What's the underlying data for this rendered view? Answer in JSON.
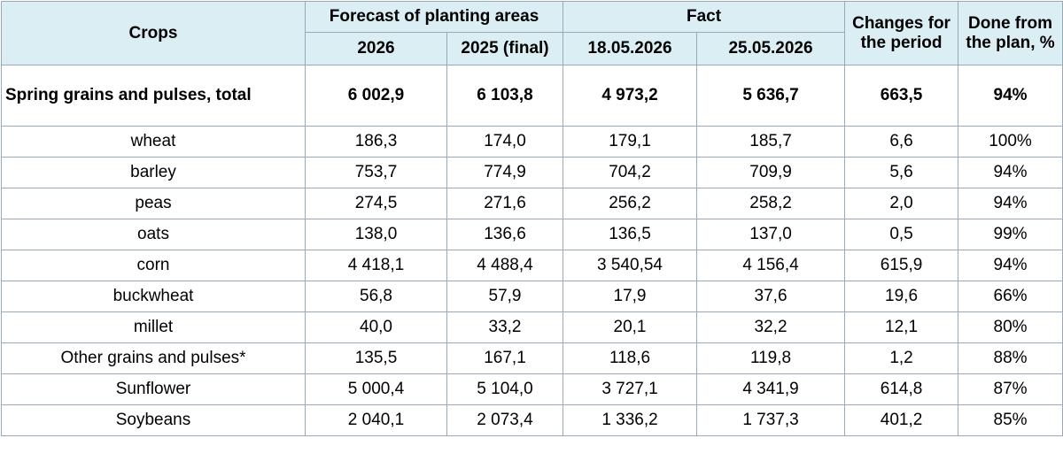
{
  "header": {
    "crops": "Crops",
    "forecast": "Forecast of planting areas",
    "forecast_2026": "2026",
    "forecast_2025": "2025 (final)",
    "fact": "Fact",
    "fact_date1": "18.05.2026",
    "fact_date2": "25.05.2026",
    "changes": "Changes for the period",
    "done": "Done from the plan, %"
  },
  "total": {
    "name": "Spring grains and pulses, total",
    "f2026": "6 002,9",
    "f2025": "6 103,8",
    "d1": "4 973,2",
    "d2": "5 636,7",
    "change": "663,5",
    "done": "94%"
  },
  "rows": [
    {
      "name": "wheat",
      "f2026": "186,3",
      "f2025": "174,0",
      "d1": "179,1",
      "d2": "185,7",
      "change": "6,6",
      "done": "100%"
    },
    {
      "name": "barley",
      "f2026": "753,7",
      "f2025": "774,9",
      "d1": "704,2",
      "d2": "709,9",
      "change": "5,6",
      "done": "94%"
    },
    {
      "name": "peas",
      "f2026": "274,5",
      "f2025": "271,6",
      "d1": "256,2",
      "d2": "258,2",
      "change": "2,0",
      "done": "94%"
    },
    {
      "name": "oats",
      "f2026": "138,0",
      "f2025": "136,6",
      "d1": "136,5",
      "d2": "137,0",
      "change": "0,5",
      "done": "99%"
    },
    {
      "name": "corn",
      "f2026": "4 418,1",
      "f2025": "4 488,4",
      "d1": "3 540,54",
      "d2": "4 156,4",
      "change": "615,9",
      "done": "94%"
    },
    {
      "name": "buckwheat",
      "f2026": "56,8",
      "f2025": "57,9",
      "d1": "17,9",
      "d2": "37,6",
      "change": "19,6",
      "done": "66%"
    },
    {
      "name": "millet",
      "f2026": "40,0",
      "f2025": "33,2",
      "d1": "20,1",
      "d2": "32,2",
      "change": "12,1",
      "done": "80%"
    },
    {
      "name": "Other grains and pulses*",
      "f2026": "135,5",
      "f2025": "167,1",
      "d1": "118,6",
      "d2": "119,8",
      "change": "1,2",
      "done": "88%"
    },
    {
      "name": "Sunflower",
      "f2026": "5 000,4",
      "f2025": "5 104,0",
      "d1": "3 727,1",
      "d2": "4 341,9",
      "change": "614,8",
      "done": "87%"
    },
    {
      "name": "Soybeans",
      "f2026": "2 040,1",
      "f2025": "2 073,4",
      "d1": "1 336,2",
      "d2": "1 737,3",
      "change": "401,2",
      "done": "85%"
    }
  ]
}
